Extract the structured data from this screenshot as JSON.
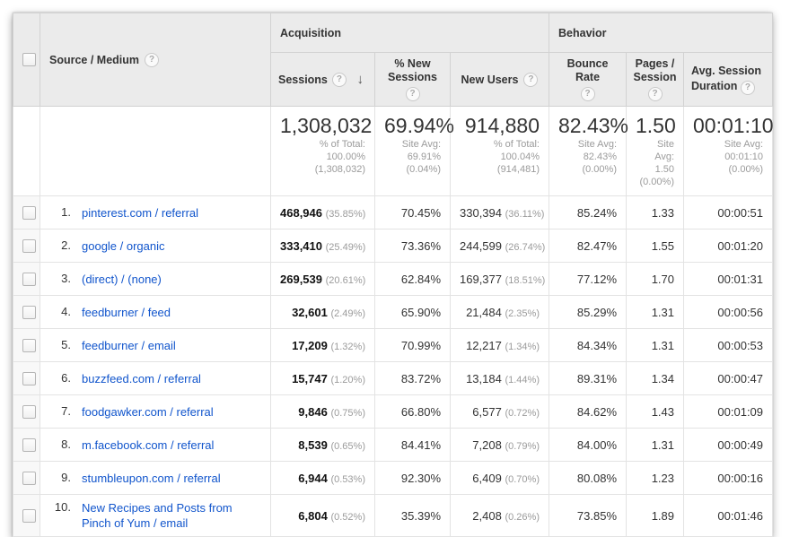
{
  "table": {
    "group_headers": {
      "acquisition": "Acquisition",
      "behavior": "Behavior"
    },
    "columns": {
      "source_medium": "Source / Medium",
      "sessions": "Sessions",
      "pct_new_sessions": "% New Sessions",
      "new_users": "New Users",
      "bounce_rate": "Bounce Rate",
      "pages_session": "Pages / Session",
      "avg_duration": "Avg. Session Duration"
    },
    "icons": {
      "help": "?",
      "sort_descending": "↓"
    },
    "summary": {
      "sessions": {
        "value": "1,308,032",
        "sub": [
          "% of Total:",
          "100.00%",
          "(1,308,032)"
        ]
      },
      "pct_new_sessions": {
        "value": "69.94%",
        "sub": [
          "Site Avg:",
          "69.91%",
          "(0.04%)"
        ]
      },
      "new_users": {
        "value": "914,880",
        "sub": [
          "% of Total:",
          "100.04% (914,481)"
        ]
      },
      "bounce_rate": {
        "value": "82.43%",
        "sub": [
          "Site Avg:",
          "82.43%",
          "(0.00%)"
        ]
      },
      "pages_session": {
        "value": "1.50",
        "sub": [
          "Site Avg:",
          "1.50",
          "(0.00%)"
        ]
      },
      "avg_duration": {
        "value": "00:01:10",
        "sub": [
          "Site Avg:",
          "00:01:10",
          "(0.00%)"
        ]
      }
    },
    "rows": [
      {
        "rank": "1.",
        "source": "pinterest.com / referral",
        "sessions": "468,946",
        "sessions_pct": "(35.85%)",
        "new_sessions": "70.45%",
        "new_users": "330,394",
        "new_users_pct": "(36.11%)",
        "bounce": "85.24%",
        "pages": "1.33",
        "duration": "00:00:51"
      },
      {
        "rank": "2.",
        "source": "google / organic",
        "sessions": "333,410",
        "sessions_pct": "(25.49%)",
        "new_sessions": "73.36%",
        "new_users": "244,599",
        "new_users_pct": "(26.74%)",
        "bounce": "82.47%",
        "pages": "1.55",
        "duration": "00:01:20"
      },
      {
        "rank": "3.",
        "source": "(direct) / (none)",
        "sessions": "269,539",
        "sessions_pct": "(20.61%)",
        "new_sessions": "62.84%",
        "new_users": "169,377",
        "new_users_pct": "(18.51%)",
        "bounce": "77.12%",
        "pages": "1.70",
        "duration": "00:01:31"
      },
      {
        "rank": "4.",
        "source": "feedburner / feed",
        "sessions": "32,601",
        "sessions_pct": "(2.49%)",
        "new_sessions": "65.90%",
        "new_users": "21,484",
        "new_users_pct": "(2.35%)",
        "bounce": "85.29%",
        "pages": "1.31",
        "duration": "00:00:56"
      },
      {
        "rank": "5.",
        "source": "feedburner / email",
        "sessions": "17,209",
        "sessions_pct": "(1.32%)",
        "new_sessions": "70.99%",
        "new_users": "12,217",
        "new_users_pct": "(1.34%)",
        "bounce": "84.34%",
        "pages": "1.31",
        "duration": "00:00:53"
      },
      {
        "rank": "6.",
        "source": "buzzfeed.com / referral",
        "sessions": "15,747",
        "sessions_pct": "(1.20%)",
        "new_sessions": "83.72%",
        "new_users": "13,184",
        "new_users_pct": "(1.44%)",
        "bounce": "89.31%",
        "pages": "1.34",
        "duration": "00:00:47"
      },
      {
        "rank": "7.",
        "source": "foodgawker.com / referral",
        "sessions": "9,846",
        "sessions_pct": "(0.75%)",
        "new_sessions": "66.80%",
        "new_users": "6,577",
        "new_users_pct": "(0.72%)",
        "bounce": "84.62%",
        "pages": "1.43",
        "duration": "00:01:09"
      },
      {
        "rank": "8.",
        "source": "m.facebook.com / referral",
        "sessions": "8,539",
        "sessions_pct": "(0.65%)",
        "new_sessions": "84.41%",
        "new_users": "7,208",
        "new_users_pct": "(0.79%)",
        "bounce": "84.00%",
        "pages": "1.31",
        "duration": "00:00:49"
      },
      {
        "rank": "9.",
        "source": "stumbleupon.com / referral",
        "sessions": "6,944",
        "sessions_pct": "(0.53%)",
        "new_sessions": "92.30%",
        "new_users": "6,409",
        "new_users_pct": "(0.70%)",
        "bounce": "80.08%",
        "pages": "1.23",
        "duration": "00:00:16"
      },
      {
        "rank": "10.",
        "source": "New Recipes and Posts from Pinch of Yum / email",
        "sessions": "6,804",
        "sessions_pct": "(0.52%)",
        "new_sessions": "35.39%",
        "new_users": "2,408",
        "new_users_pct": "(0.26%)",
        "bounce": "73.85%",
        "pages": "1.89",
        "duration": "00:01:46"
      }
    ]
  }
}
